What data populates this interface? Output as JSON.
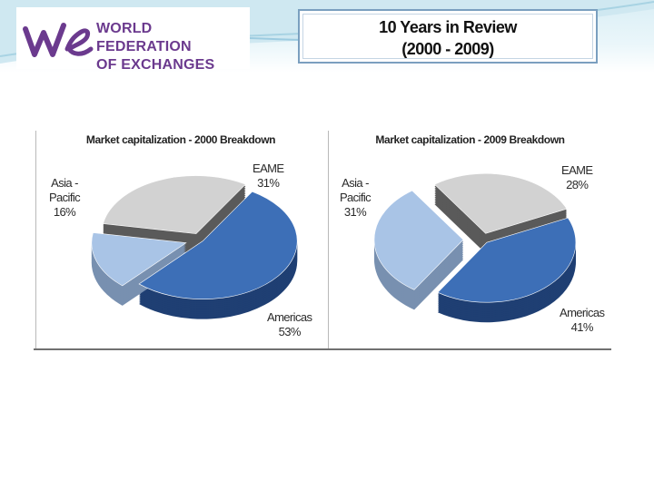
{
  "header": {
    "logo_text_line1": "WORLD FEDERATION",
    "logo_text_line2": "OF EXCHANGES",
    "title_line1": "10 Years in Review",
    "title_line2": "(2000 - 2009)"
  },
  "colors": {
    "americas": "#3d6fb7",
    "eame": "#d2d2d2",
    "asia_pacific": "#a9c4e6",
    "logo": "#6b3a8e"
  },
  "chart_data": [
    {
      "type": "pie",
      "title": "Market capitalization - 2000 Breakdown",
      "slices": [
        {
          "label": "EAME",
          "value": 31,
          "value_label": "31%"
        },
        {
          "label": "Americas",
          "value": 53,
          "value_label": "53%"
        },
        {
          "label": "Asia - Pacific",
          "value": 16,
          "value_label": "16%"
        }
      ]
    },
    {
      "type": "pie",
      "title": "Market capitalization - 2009 Breakdown",
      "slices": [
        {
          "label": "EAME",
          "value": 28,
          "value_label": "28%"
        },
        {
          "label": "Americas",
          "value": 41,
          "value_label": "41%"
        },
        {
          "label": "Asia - Pacific",
          "value": 31,
          "value_label": "31%"
        }
      ]
    }
  ]
}
